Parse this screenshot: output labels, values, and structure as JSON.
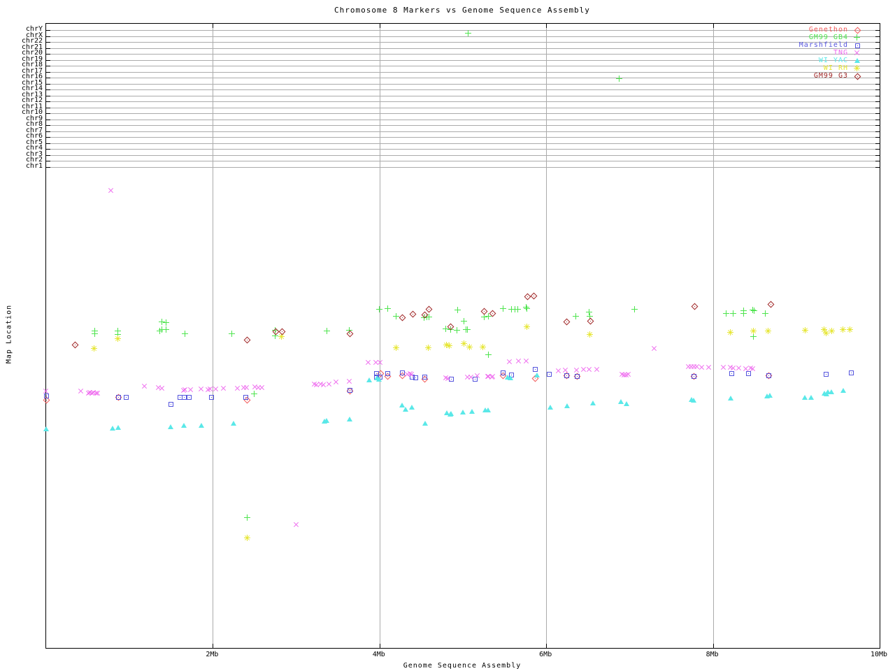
{
  "title": "Chromosome 8 Markers vs Genome Sequence Assembly",
  "x_axis": {
    "label": "Genome Sequence Assembly",
    "ticks": [
      "2Mb",
      "4Mb",
      "6Mb",
      "8Mb",
      "10Mb"
    ],
    "tick_mb": [
      2,
      4,
      6,
      8,
      10
    ],
    "range_mb": [
      0,
      10
    ]
  },
  "y_axis": {
    "label": "Map Location",
    "chromosome_lines": [
      "chrY",
      "chrX",
      "chr22",
      "chr21",
      "chr20",
      "chr19",
      "chr18",
      "chr17",
      "chr16",
      "chr15",
      "chr14",
      "chr13",
      "chr12",
      "chr11",
      "chr10",
      "chr9",
      "chr8",
      "chr7",
      "chr6",
      "chr5",
      "chr4",
      "chr3",
      "chr2",
      "chr1"
    ]
  },
  "legend": [
    {
      "label": "Genethon",
      "color": "#f25c5c",
      "marker": "diamond-dot"
    },
    {
      "label": "GM99 GB4",
      "color": "#4ee44e",
      "marker": "plus"
    },
    {
      "label": "Marshfield",
      "color": "#5555dd",
      "marker": "square-dot"
    },
    {
      "label": "TNG",
      "color": "#ee66ee",
      "marker": "cross"
    },
    {
      "label": "WI YAC",
      "color": "#5ae8e8",
      "marker": "triangle"
    },
    {
      "label": "WI RH",
      "color": "#e6e635",
      "marker": "star"
    },
    {
      "label": "GM99 G3",
      "color": "#a02828",
      "marker": "diamond-dot"
    }
  ],
  "colors": {
    "gridline": "#ababab",
    "axis": "#000000",
    "background": "#ffffff"
  },
  "chart_data": {
    "type": "scatter",
    "title": "Chromosome 8 Markers vs Genome Sequence Assembly",
    "xlabel": "Genome Sequence Assembly",
    "ylabel": "Map Location",
    "x_unit": "Mb",
    "xlim": [
      0,
      10
    ],
    "grid": true,
    "legend_position": "top-right",
    "y_note": "y axis has no numeric labels; point y-values are fractional positions of the plot height measured from the top border (0.0) to the bottom border (1.0); chromosome gridlines chrY..chr1 occupy fractions 0.010-0.230 at the top",
    "series": [
      {
        "name": "Genethon",
        "marker": "diamond-dot",
        "color": "#f25c5c",
        "points": [
          [
            0,
            0.602
          ],
          [
            0.86,
            0.598
          ],
          [
            2.41,
            0.602
          ],
          [
            3.64,
            0.588
          ],
          [
            4.01,
            0.56
          ],
          [
            4.09,
            0.564
          ],
          [
            4.27,
            0.563
          ],
          [
            4.54,
            0.569
          ],
          [
            5.48,
            0.563
          ],
          [
            5.86,
            0.568
          ],
          [
            6.24,
            0.563
          ],
          [
            6.37,
            0.564
          ],
          [
            7.77,
            0.564
          ],
          [
            8.67,
            0.563
          ]
        ]
      },
      {
        "name": "GM99 GB4",
        "marker": "plus",
        "color": "#4ee44e",
        "points": [
          [
            5.07,
            0.016
          ],
          [
            6.88,
            0.088
          ],
          [
            0.59,
            0.493
          ],
          [
            0.59,
            0.497
          ],
          [
            0.86,
            0.493
          ],
          [
            0.86,
            0.498
          ],
          [
            1.39,
            0.478
          ],
          [
            1.44,
            0.479
          ],
          [
            1.37,
            0.493
          ],
          [
            1.39,
            0.49
          ],
          [
            1.44,
            0.49
          ],
          [
            1.67,
            0.497
          ],
          [
            2.23,
            0.497
          ],
          [
            2.75,
            0.492
          ],
          [
            2.75,
            0.5
          ],
          [
            3.37,
            0.493
          ],
          [
            3.64,
            0.492
          ],
          [
            4.0,
            0.458
          ],
          [
            4.1,
            0.457
          ],
          [
            4.2,
            0.469
          ],
          [
            4.54,
            0.472
          ],
          [
            4.57,
            0.47
          ],
          [
            4.6,
            0.47
          ],
          [
            4.94,
            0.459
          ],
          [
            5.02,
            0.477
          ],
          [
            4.8,
            0.489
          ],
          [
            4.86,
            0.49
          ],
          [
            4.93,
            0.492
          ],
          [
            5.04,
            0.49
          ],
          [
            5.06,
            0.49
          ],
          [
            5.26,
            0.47
          ],
          [
            5.31,
            0.469
          ],
          [
            5.49,
            0.457
          ],
          [
            5.59,
            0.458
          ],
          [
            5.63,
            0.458
          ],
          [
            5.66,
            0.458
          ],
          [
            5.76,
            0.455
          ],
          [
            5.77,
            0.457
          ],
          [
            5.31,
            0.531
          ],
          [
            6.36,
            0.469
          ],
          [
            6.52,
            0.462
          ],
          [
            6.53,
            0.469
          ],
          [
            7.06,
            0.458
          ],
          [
            8.16,
            0.465
          ],
          [
            8.25,
            0.465
          ],
          [
            8.37,
            0.46
          ],
          [
            8.37,
            0.465
          ],
          [
            8.48,
            0.459
          ],
          [
            8.5,
            0.46
          ],
          [
            8.63,
            0.465
          ],
          [
            8.49,
            0.502
          ],
          [
            2.5,
            0.593
          ],
          [
            2.42,
            0.792
          ]
        ]
      },
      {
        "name": "Marshfield",
        "marker": "square-dot",
        "color": "#5555dd",
        "points": [
          [
            0,
            0.596
          ],
          [
            0.86,
            0.598
          ],
          [
            0.96,
            0.598
          ],
          [
            1.49,
            0.609
          ],
          [
            1.6,
            0.598
          ],
          [
            1.65,
            0.598
          ],
          [
            1.71,
            0.598
          ],
          [
            1.98,
            0.598
          ],
          [
            2.39,
            0.598
          ],
          [
            3.64,
            0.587
          ],
          [
            3.96,
            0.56
          ],
          [
            3.96,
            0.566
          ],
          [
            4.0,
            0.566
          ],
          [
            4.09,
            0.56
          ],
          [
            4.27,
            0.559
          ],
          [
            4.39,
            0.566
          ],
          [
            4.43,
            0.567
          ],
          [
            4.54,
            0.566
          ],
          [
            4.86,
            0.569
          ],
          [
            5.14,
            0.569
          ],
          [
            5.48,
            0.559
          ],
          [
            5.58,
            0.562
          ],
          [
            5.86,
            0.553
          ],
          [
            6.03,
            0.561
          ],
          [
            6.24,
            0.563
          ],
          [
            6.37,
            0.564
          ],
          [
            7.77,
            0.564
          ],
          [
            8.22,
            0.56
          ],
          [
            8.42,
            0.56
          ],
          [
            8.67,
            0.563
          ],
          [
            9.35,
            0.561
          ],
          [
            9.66,
            0.559
          ]
        ]
      },
      {
        "name": "TNG",
        "marker": "cross",
        "color": "#ee66ee",
        "points": [
          [
            0.78,
            0.268
          ],
          [
            3.0,
            0.803
          ],
          [
            0,
            0.589
          ],
          [
            0.42,
            0.589
          ],
          [
            0.51,
            0.592
          ],
          [
            0.53,
            0.591
          ],
          [
            0.55,
            0.592
          ],
          [
            0.57,
            0.591
          ],
          [
            0.6,
            0.592
          ],
          [
            0.62,
            0.592
          ],
          [
            1.18,
            0.581
          ],
          [
            1.35,
            0.583
          ],
          [
            1.39,
            0.585
          ],
          [
            1.65,
            0.588
          ],
          [
            1.67,
            0.587
          ],
          [
            1.74,
            0.587
          ],
          [
            1.86,
            0.586
          ],
          [
            1.95,
            0.587
          ],
          [
            1.97,
            0.586
          ],
          [
            2.04,
            0.586
          ],
          [
            2.13,
            0.585
          ],
          [
            2.3,
            0.585
          ],
          [
            2.37,
            0.583
          ],
          [
            2.41,
            0.583
          ],
          [
            2.51,
            0.582
          ],
          [
            2.55,
            0.583
          ],
          [
            2.59,
            0.583
          ],
          [
            3.22,
            0.578
          ],
          [
            3.25,
            0.579
          ],
          [
            3.3,
            0.578
          ],
          [
            3.33,
            0.579
          ],
          [
            3.4,
            0.578
          ],
          [
            3.48,
            0.574
          ],
          [
            3.64,
            0.573
          ],
          [
            3.87,
            0.543
          ],
          [
            3.96,
            0.543
          ],
          [
            4.01,
            0.543
          ],
          [
            4.34,
            0.562
          ],
          [
            4.37,
            0.561
          ],
          [
            4.39,
            0.562
          ],
          [
            4.8,
            0.568
          ],
          [
            4.82,
            0.569
          ],
          [
            5.06,
            0.567
          ],
          [
            5.1,
            0.567
          ],
          [
            5.18,
            0.564
          ],
          [
            5.3,
            0.566
          ],
          [
            5.31,
            0.566
          ],
          [
            5.35,
            0.567
          ],
          [
            5.36,
            0.566
          ],
          [
            5.56,
            0.542
          ],
          [
            5.67,
            0.541
          ],
          [
            5.76,
            0.541
          ],
          [
            6.15,
            0.557
          ],
          [
            6.23,
            0.555
          ],
          [
            6.37,
            0.555
          ],
          [
            6.45,
            0.554
          ],
          [
            6.52,
            0.554
          ],
          [
            6.61,
            0.554
          ],
          [
            6.91,
            0.562
          ],
          [
            6.94,
            0.563
          ],
          [
            6.96,
            0.563
          ],
          [
            6.99,
            0.562
          ],
          [
            7.3,
            0.521
          ],
          [
            7.71,
            0.55
          ],
          [
            7.74,
            0.55
          ],
          [
            7.78,
            0.55
          ],
          [
            7.81,
            0.55
          ],
          [
            7.87,
            0.551
          ],
          [
            7.95,
            0.551
          ],
          [
            8.13,
            0.551
          ],
          [
            8.21,
            0.551
          ],
          [
            8.25,
            0.552
          ],
          [
            8.31,
            0.552
          ],
          [
            8.4,
            0.553
          ],
          [
            8.46,
            0.552
          ],
          [
            8.48,
            0.553
          ]
        ]
      },
      {
        "name": "WI YAC",
        "marker": "triangle",
        "color": "#5ae8e8",
        "points": [
          [
            0,
            0.649
          ],
          [
            0.8,
            0.648
          ],
          [
            0.86,
            0.647
          ],
          [
            1.49,
            0.646
          ],
          [
            1.65,
            0.644
          ],
          [
            1.86,
            0.644
          ],
          [
            2.25,
            0.64
          ],
          [
            3.34,
            0.637
          ],
          [
            3.36,
            0.636
          ],
          [
            3.64,
            0.634
          ],
          [
            3.88,
            0.571
          ],
          [
            3.97,
            0.568
          ],
          [
            3.99,
            0.57
          ],
          [
            4.27,
            0.611
          ],
          [
            4.31,
            0.618
          ],
          [
            4.39,
            0.615
          ],
          [
            4.55,
            0.64
          ],
          [
            4.81,
            0.624
          ],
          [
            4.85,
            0.626
          ],
          [
            4.86,
            0.625
          ],
          [
            5.0,
            0.623
          ],
          [
            5.11,
            0.621
          ],
          [
            5.27,
            0.619
          ],
          [
            5.3,
            0.619
          ],
          [
            5.54,
            0.567
          ],
          [
            5.57,
            0.568
          ],
          [
            5.89,
            0.563
          ],
          [
            6.05,
            0.615
          ],
          [
            6.25,
            0.613
          ],
          [
            6.56,
            0.608
          ],
          [
            6.9,
            0.606
          ],
          [
            6.96,
            0.609
          ],
          [
            7.74,
            0.602
          ],
          [
            7.77,
            0.604
          ],
          [
            8.21,
            0.6
          ],
          [
            8.65,
            0.597
          ],
          [
            8.68,
            0.596
          ],
          [
            9.1,
            0.599
          ],
          [
            9.18,
            0.599
          ],
          [
            9.34,
            0.592
          ],
          [
            9.36,
            0.593
          ],
          [
            9.38,
            0.59
          ],
          [
            9.42,
            0.59
          ],
          [
            9.56,
            0.588
          ]
        ]
      },
      {
        "name": "WI RH",
        "marker": "star",
        "color": "#e6e635",
        "points": [
          [
            0.58,
            0.521
          ],
          [
            0.86,
            0.505
          ],
          [
            2.42,
            0.824
          ],
          [
            2.83,
            0.502
          ],
          [
            4.2,
            0.52
          ],
          [
            4.59,
            0.52
          ],
          [
            4.81,
            0.515
          ],
          [
            4.84,
            0.516
          ],
          [
            5.02,
            0.513
          ],
          [
            5.08,
            0.518
          ],
          [
            5.24,
            0.518
          ],
          [
            5.77,
            0.486
          ],
          [
            6.53,
            0.498
          ],
          [
            8.21,
            0.495
          ],
          [
            8.49,
            0.493
          ],
          [
            8.67,
            0.493
          ],
          [
            9.11,
            0.492
          ],
          [
            9.34,
            0.49
          ],
          [
            9.36,
            0.496
          ],
          [
            9.43,
            0.493
          ],
          [
            9.56,
            0.49
          ],
          [
            9.65,
            0.49
          ]
        ]
      },
      {
        "name": "GM99 G3",
        "marker": "diamond-dot",
        "color": "#a02828",
        "points": [
          [
            0.34,
            0.514
          ],
          [
            2.41,
            0.506
          ],
          [
            2.75,
            0.493
          ],
          [
            2.83,
            0.493
          ],
          [
            3.64,
            0.496
          ],
          [
            4.27,
            0.47
          ],
          [
            4.4,
            0.465
          ],
          [
            4.54,
            0.466
          ],
          [
            4.59,
            0.457
          ],
          [
            4.85,
            0.485
          ],
          [
            5.25,
            0.46
          ],
          [
            5.35,
            0.464
          ],
          [
            5.77,
            0.437
          ],
          [
            5.85,
            0.436
          ],
          [
            6.24,
            0.477
          ],
          [
            6.53,
            0.476
          ],
          [
            7.78,
            0.452
          ],
          [
            8.69,
            0.449
          ]
        ]
      }
    ]
  }
}
